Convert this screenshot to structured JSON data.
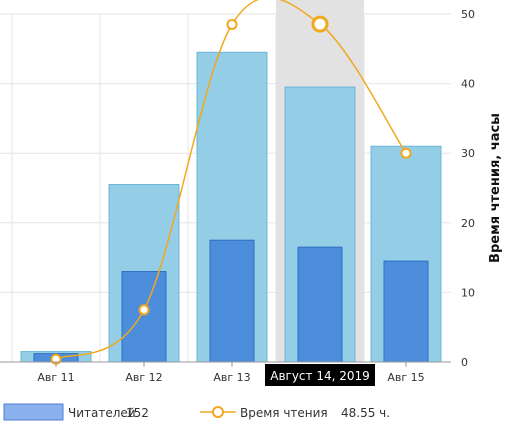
{
  "chart_data": {
    "type": "bar",
    "categories": [
      "",
      "Авг 11",
      "Авг 12",
      "Авг 13",
      "Август 14, 2019",
      "Авг 15"
    ],
    "highlight_index": 4,
    "tooltip_label": "Август 14, 2019",
    "series": [
      {
        "name": "",
        "type": "bar",
        "axis": "right",
        "values": [
          1,
          1.5,
          25.5,
          44.5,
          39.5,
          31
        ]
      },
      {
        "name": "Читателей",
        "type": "bar",
        "axis": "right",
        "values": [
          0,
          1.2,
          13,
          17.5,
          16.5,
          14.5
        ]
      },
      {
        "name": "Время чтения",
        "type": "line",
        "axis": "right",
        "values": [
          null,
          0.4,
          7.5,
          48.5,
          48.55,
          30
        ]
      }
    ],
    "y_right": {
      "label": "Время чтения, часы",
      "ticks": [
        0,
        10,
        20,
        30,
        40,
        50
      ],
      "ylim": [
        0,
        50
      ]
    },
    "grid": true,
    "legend": {
      "position": "bottom",
      "items": [
        {
          "label": "Читателей",
          "value": "152"
        },
        {
          "label": "Время чтения",
          "value": "48.55 ч."
        }
      ]
    },
    "colors": {
      "bar_back": "#93cde6",
      "bar_back_stroke": "#6db6d6",
      "bar_front": "#4c8ddc",
      "bar_front_stroke": "#2f6fc0",
      "line": "#f2a81d",
      "highlight_band": "#e2e2e2",
      "tooltip_bg": "#000000",
      "grid": "#e6e6e6",
      "legend_swatch": "#8ab0ee",
      "legend_swatch_stroke": "#4c7fd0"
    }
  }
}
